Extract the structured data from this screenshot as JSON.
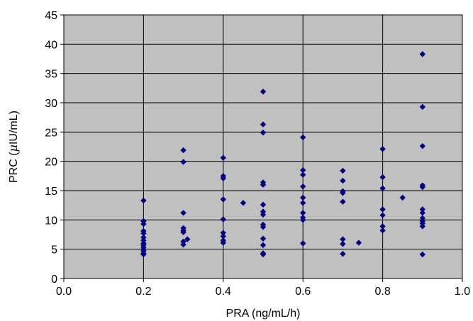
{
  "chart_data": {
    "type": "scatter",
    "xlabel": "PRA (ng/mL/h)",
    "ylabel_prefix": "PRC (",
    "ylabel_mu": "μ",
    "ylabel_suffix": "IU/mL)",
    "xlim": [
      0,
      1.0
    ],
    "ylim": [
      0,
      45
    ],
    "x_ticks": [
      0.0,
      0.2,
      0.4,
      0.6,
      0.8,
      1.0
    ],
    "x_tick_labels": [
      "0.0",
      "0.2",
      "0.4",
      "0.6",
      "0.8",
      "1.0"
    ],
    "y_ticks": [
      0,
      5,
      10,
      15,
      20,
      25,
      30,
      35,
      40,
      45
    ],
    "y_tick_labels": [
      "0",
      "5",
      "10",
      "15",
      "20",
      "25",
      "30",
      "35",
      "40",
      "45"
    ],
    "grid": true,
    "plot_background": "#c0c0c0",
    "marker_color": "#000080",
    "marker": "diamond",
    "points": [
      [
        0.2,
        13.3
      ],
      [
        0.2,
        9.8
      ],
      [
        0.2,
        9.3
      ],
      [
        0.2,
        8.1
      ],
      [
        0.2,
        7.7
      ],
      [
        0.2,
        7.0
      ],
      [
        0.2,
        6.5
      ],
      [
        0.2,
        6.0
      ],
      [
        0.2,
        5.7
      ],
      [
        0.2,
        5.3
      ],
      [
        0.2,
        5.0
      ],
      [
        0.2,
        4.7
      ],
      [
        0.2,
        4.3
      ],
      [
        0.2,
        4.1
      ],
      [
        0.3,
        21.9
      ],
      [
        0.3,
        19.9
      ],
      [
        0.3,
        11.2
      ],
      [
        0.3,
        8.6
      ],
      [
        0.3,
        8.2
      ],
      [
        0.3,
        7.9
      ],
      [
        0.3,
        6.3
      ],
      [
        0.3,
        5.8
      ],
      [
        0.31,
        6.7
      ],
      [
        0.4,
        20.6
      ],
      [
        0.4,
        17.5
      ],
      [
        0.4,
        17.1
      ],
      [
        0.4,
        13.5
      ],
      [
        0.4,
        10.1
      ],
      [
        0.4,
        7.8
      ],
      [
        0.4,
        7.2
      ],
      [
        0.4,
        6.5
      ],
      [
        0.4,
        6.1
      ],
      [
        0.45,
        12.9
      ],
      [
        0.5,
        31.9
      ],
      [
        0.5,
        26.3
      ],
      [
        0.5,
        24.9
      ],
      [
        0.5,
        16.4
      ],
      [
        0.5,
        16.0
      ],
      [
        0.5,
        12.6
      ],
      [
        0.5,
        11.4
      ],
      [
        0.5,
        10.9
      ],
      [
        0.5,
        9.2
      ],
      [
        0.5,
        8.8
      ],
      [
        0.5,
        6.8
      ],
      [
        0.5,
        5.7
      ],
      [
        0.5,
        4.3
      ],
      [
        0.5,
        4.1
      ],
      [
        0.6,
        24.1
      ],
      [
        0.6,
        18.5
      ],
      [
        0.6,
        17.7
      ],
      [
        0.6,
        15.7
      ],
      [
        0.6,
        13.8
      ],
      [
        0.6,
        12.9
      ],
      [
        0.6,
        11.2
      ],
      [
        0.6,
        10.4
      ],
      [
        0.6,
        10.0
      ],
      [
        0.6,
        6.0
      ],
      [
        0.7,
        18.4
      ],
      [
        0.7,
        16.7
      ],
      [
        0.7,
        14.9
      ],
      [
        0.7,
        14.6
      ],
      [
        0.7,
        13.1
      ],
      [
        0.7,
        6.7
      ],
      [
        0.7,
        5.9
      ],
      [
        0.7,
        4.2
      ],
      [
        0.74,
        6.1
      ],
      [
        0.8,
        22.1
      ],
      [
        0.8,
        17.3
      ],
      [
        0.8,
        15.4
      ],
      [
        0.8,
        11.8
      ],
      [
        0.8,
        10.8
      ],
      [
        0.8,
        8.9
      ],
      [
        0.8,
        8.2
      ],
      [
        0.85,
        13.8
      ],
      [
        0.9,
        38.3
      ],
      [
        0.9,
        29.3
      ],
      [
        0.9,
        22.6
      ],
      [
        0.9,
        15.9
      ],
      [
        0.9,
        15.6
      ],
      [
        0.9,
        11.8
      ],
      [
        0.9,
        11.2
      ],
      [
        0.9,
        10.3
      ],
      [
        0.9,
        9.8
      ],
      [
        0.9,
        9.4
      ],
      [
        0.9,
        8.9
      ],
      [
        0.9,
        4.1
      ]
    ]
  }
}
